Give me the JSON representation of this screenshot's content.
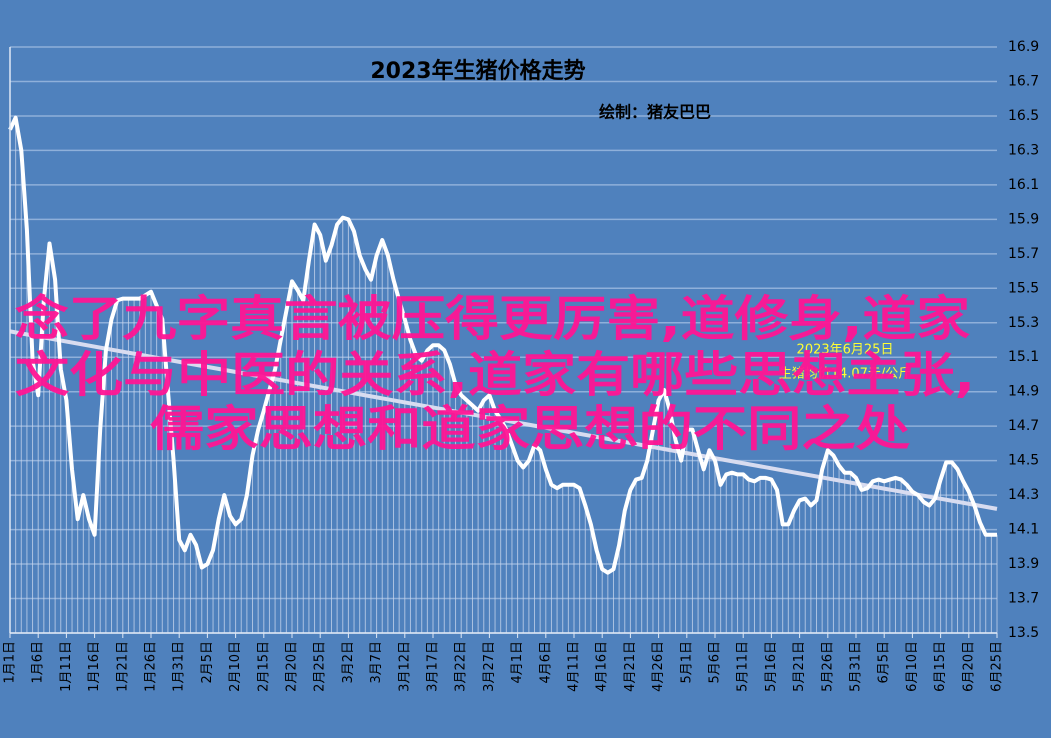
{
  "chart_data": {
    "type": "line",
    "title": "2023年生猪价格走势",
    "subtitle": "绘制：猪友巴巴",
    "annotation": [
      "2023年6月25日",
      "生猪均价14.07元/公斤"
    ],
    "overlay_text": [
      "念了九字真言被压得更厉害,道修身,道家",
      "文化与中医的关系,道家有哪些思想主张,",
      "儒家思想和道家思想的不同之处"
    ],
    "categories": [
      "1月1日",
      null,
      null,
      null,
      null,
      "1月6日",
      null,
      null,
      null,
      null,
      "1月11日",
      null,
      null,
      null,
      null,
      "1月16日",
      null,
      null,
      null,
      null,
      "1月21日",
      null,
      null,
      null,
      null,
      "1月26日",
      null,
      null,
      null,
      null,
      "1月31日",
      null,
      null,
      null,
      null,
      "2月5日",
      null,
      null,
      null,
      null,
      "2月10日",
      null,
      null,
      null,
      null,
      "2月15日",
      null,
      null,
      null,
      null,
      "2月20日",
      null,
      null,
      null,
      null,
      "2月25日",
      null,
      null,
      null,
      null,
      "3月2日",
      null,
      null,
      null,
      null,
      "3月7日",
      null,
      null,
      null,
      null,
      "3月12日",
      null,
      null,
      null,
      null,
      "3月17日",
      null,
      null,
      null,
      null,
      "3月22日",
      null,
      null,
      null,
      null,
      "3月27日",
      null,
      null,
      null,
      null,
      "4月1日",
      null,
      null,
      null,
      null,
      "4月6日",
      null,
      null,
      null,
      null,
      "4月11日",
      null,
      null,
      null,
      null,
      "4月16日",
      null,
      null,
      null,
      null,
      "4月21日",
      null,
      null,
      null,
      null,
      "4月26日",
      null,
      null,
      null,
      null,
      "5月1日",
      null,
      null,
      null,
      null,
      "5月6日",
      null,
      null,
      null,
      null,
      "5月11日",
      null,
      null,
      null,
      null,
      "5月16日",
      null,
      null,
      null,
      null,
      "5月21日",
      null,
      null,
      null,
      null,
      "5月26日",
      null,
      null,
      null,
      null,
      "5月31日",
      null,
      null,
      null,
      null,
      "6月5日",
      null,
      null,
      null,
      null,
      "6月10日",
      null,
      null,
      null,
      null,
      "6月15日",
      null,
      null,
      null,
      null,
      "6月20日",
      null,
      null,
      null,
      null,
      "6月25日"
    ],
    "values": [
      16.42,
      16.49,
      16.3,
      15.84,
      15.08,
      14.88,
      15.43,
      15.76,
      15.55,
      15.03,
      14.85,
      14.45,
      14.16,
      14.3,
      14.16,
      14.07,
      14.68,
      15.14,
      15.32,
      15.43,
      15.44,
      15.44,
      15.44,
      15.44,
      15.46,
      15.48,
      15.4,
      15.32,
      14.91,
      14.5,
      14.04,
      13.98,
      14.07,
      14.01,
      13.88,
      13.9,
      13.98,
      14.16,
      14.3,
      14.18,
      14.13,
      14.16,
      14.3,
      14.53,
      14.68,
      14.79,
      14.91,
      15.03,
      15.2,
      15.37,
      15.54,
      15.49,
      15.43,
      15.66,
      15.87,
      15.81,
      15.66,
      15.75,
      15.87,
      15.91,
      15.9,
      15.83,
      15.69,
      15.61,
      15.55,
      15.69,
      15.78,
      15.69,
      15.55,
      15.43,
      15.32,
      15.2,
      15.11,
      15.08,
      15.14,
      15.17,
      15.17,
      15.14,
      15.06,
      14.94,
      14.88,
      14.85,
      14.82,
      14.79,
      14.85,
      14.88,
      14.79,
      14.74,
      14.68,
      14.59,
      14.5,
      14.46,
      14.5,
      14.59,
      14.56,
      14.45,
      14.36,
      14.34,
      14.36,
      14.36,
      14.36,
      14.34,
      14.24,
      14.13,
      13.98,
      13.87,
      13.85,
      13.87,
      14.01,
      14.21,
      14.33,
      14.39,
      14.4,
      14.5,
      14.68,
      14.85,
      14.91,
      14.79,
      14.62,
      14.5,
      14.68,
      14.68,
      14.56,
      14.45,
      14.56,
      14.5,
      14.36,
      14.42,
      14.43,
      14.42,
      14.42,
      14.39,
      14.38,
      14.4,
      14.4,
      14.39,
      14.33,
      14.13,
      14.13,
      14.21,
      14.27,
      14.28,
      14.24,
      14.27,
      14.45,
      14.56,
      14.53,
      14.47,
      14.43,
      14.43,
      14.4,
      14.33,
      14.34,
      14.38,
      14.39,
      14.38,
      14.39,
      14.4,
      14.39,
      14.36,
      14.32,
      14.3,
      14.26,
      14.24,
      14.28,
      14.39,
      14.49,
      14.49,
      14.45,
      14.38,
      14.32,
      14.24,
      14.14,
      14.07,
      14.07,
      14.07
    ],
    "color": "#ffffff",
    "trendline": {
      "values": [
        15.25,
        14.22
      ],
      "color": "#d8dcf0"
    },
    "ylim": [
      13.5,
      16.9
    ],
    "yticks": [
      13.5,
      13.7,
      13.9,
      14.1,
      14.3,
      14.5,
      14.7,
      14.9,
      15.1,
      15.3,
      15.5,
      15.7,
      15.9,
      16.1,
      16.3,
      16.5,
      16.7,
      16.9
    ],
    "grid": true
  }
}
